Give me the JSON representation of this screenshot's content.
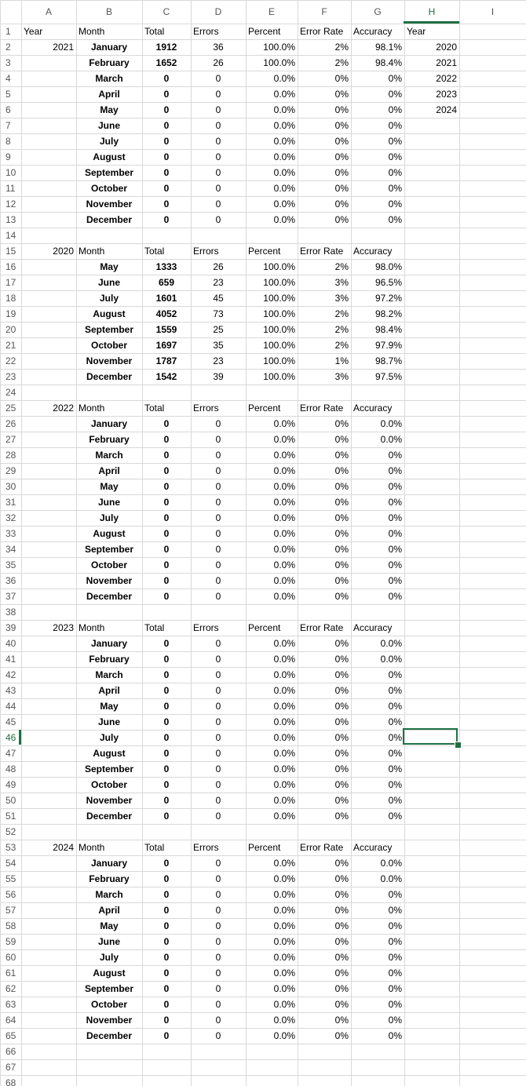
{
  "columns": [
    "A",
    "B",
    "C",
    "D",
    "E",
    "F",
    "G",
    "H",
    "I"
  ],
  "selected_column": "H",
  "selected_row": 46,
  "years_list_header": "Year",
  "years_list": [
    "2020",
    "2021",
    "2022",
    "2023",
    "2024"
  ],
  "blocks": [
    {
      "year": "2021",
      "headers": {
        "year": "Year",
        "month": "Month",
        "total": "Total",
        "errors": "Errors",
        "percent": "Percent",
        "error_rate": "Error Rate",
        "accuracy": "Accuracy"
      },
      "rows": [
        {
          "month": "January",
          "total": "1912",
          "errors": "36",
          "percent": "100.0%",
          "error_rate": "2%",
          "accuracy": "98.1%"
        },
        {
          "month": "February",
          "total": "1652",
          "errors": "26",
          "percent": "100.0%",
          "error_rate": "2%",
          "accuracy": "98.4%"
        },
        {
          "month": "March",
          "total": "0",
          "errors": "0",
          "percent": "0.0%",
          "error_rate": "0%",
          "accuracy": "0%"
        },
        {
          "month": "April",
          "total": "0",
          "errors": "0",
          "percent": "0.0%",
          "error_rate": "0%",
          "accuracy": "0%"
        },
        {
          "month": "May",
          "total": "0",
          "errors": "0",
          "percent": "0.0%",
          "error_rate": "0%",
          "accuracy": "0%"
        },
        {
          "month": "June",
          "total": "0",
          "errors": "0",
          "percent": "0.0%",
          "error_rate": "0%",
          "accuracy": "0%"
        },
        {
          "month": "July",
          "total": "0",
          "errors": "0",
          "percent": "0.0%",
          "error_rate": "0%",
          "accuracy": "0%"
        },
        {
          "month": "August",
          "total": "0",
          "errors": "0",
          "percent": "0.0%",
          "error_rate": "0%",
          "accuracy": "0%"
        },
        {
          "month": "September",
          "total": "0",
          "errors": "0",
          "percent": "0.0%",
          "error_rate": "0%",
          "accuracy": "0%"
        },
        {
          "month": "October",
          "total": "0",
          "errors": "0",
          "percent": "0.0%",
          "error_rate": "0%",
          "accuracy": "0%"
        },
        {
          "month": "November",
          "total": "0",
          "errors": "0",
          "percent": "0.0%",
          "error_rate": "0%",
          "accuracy": "0%"
        },
        {
          "month": "December",
          "total": "0",
          "errors": "0",
          "percent": "0.0%",
          "error_rate": "0%",
          "accuracy": "0%"
        }
      ]
    },
    {
      "year": "2020",
      "headers": {
        "year": "",
        "month": "Month",
        "total": "Total",
        "errors": "Errors",
        "percent": "Percent",
        "error_rate": "Error Rate",
        "accuracy": "Accuracy"
      },
      "rows": [
        {
          "month": "May",
          "total": "1333",
          "errors": "26",
          "percent": "100.0%",
          "error_rate": "2%",
          "accuracy": "98.0%"
        },
        {
          "month": "June",
          "total": "659",
          "errors": "23",
          "percent": "100.0%",
          "error_rate": "3%",
          "accuracy": "96.5%"
        },
        {
          "month": "July",
          "total": "1601",
          "errors": "45",
          "percent": "100.0%",
          "error_rate": "3%",
          "accuracy": "97.2%"
        },
        {
          "month": "August",
          "total": "4052",
          "errors": "73",
          "percent": "100.0%",
          "error_rate": "2%",
          "accuracy": "98.2%"
        },
        {
          "month": "September",
          "total": "1559",
          "errors": "25",
          "percent": "100.0%",
          "error_rate": "2%",
          "accuracy": "98.4%"
        },
        {
          "month": "October",
          "total": "1697",
          "errors": "35",
          "percent": "100.0%",
          "error_rate": "2%",
          "accuracy": "97.9%"
        },
        {
          "month": "November",
          "total": "1787",
          "errors": "23",
          "percent": "100.0%",
          "error_rate": "1%",
          "accuracy": "98.7%"
        },
        {
          "month": "December",
          "total": "1542",
          "errors": "39",
          "percent": "100.0%",
          "error_rate": "3%",
          "accuracy": "97.5%"
        }
      ]
    },
    {
      "year": "2022",
      "headers": {
        "year": "",
        "month": "Month",
        "total": "Total",
        "errors": "Errors",
        "percent": "Percent",
        "error_rate": "Error Rate",
        "accuracy": "Accuracy"
      },
      "rows": [
        {
          "month": "January",
          "total": "0",
          "errors": "0",
          "percent": "0.0%",
          "error_rate": "0%",
          "accuracy": "0.0%"
        },
        {
          "month": "February",
          "total": "0",
          "errors": "0",
          "percent": "0.0%",
          "error_rate": "0%",
          "accuracy": "0.0%"
        },
        {
          "month": "March",
          "total": "0",
          "errors": "0",
          "percent": "0.0%",
          "error_rate": "0%",
          "accuracy": "0%"
        },
        {
          "month": "April",
          "total": "0",
          "errors": "0",
          "percent": "0.0%",
          "error_rate": "0%",
          "accuracy": "0%"
        },
        {
          "month": "May",
          "total": "0",
          "errors": "0",
          "percent": "0.0%",
          "error_rate": "0%",
          "accuracy": "0%"
        },
        {
          "month": "June",
          "total": "0",
          "errors": "0",
          "percent": "0.0%",
          "error_rate": "0%",
          "accuracy": "0%"
        },
        {
          "month": "July",
          "total": "0",
          "errors": "0",
          "percent": "0.0%",
          "error_rate": "0%",
          "accuracy": "0%"
        },
        {
          "month": "August",
          "total": "0",
          "errors": "0",
          "percent": "0.0%",
          "error_rate": "0%",
          "accuracy": "0%"
        },
        {
          "month": "September",
          "total": "0",
          "errors": "0",
          "percent": "0.0%",
          "error_rate": "0%",
          "accuracy": "0%"
        },
        {
          "month": "October",
          "total": "0",
          "errors": "0",
          "percent": "0.0%",
          "error_rate": "0%",
          "accuracy": "0%"
        },
        {
          "month": "November",
          "total": "0",
          "errors": "0",
          "percent": "0.0%",
          "error_rate": "0%",
          "accuracy": "0%"
        },
        {
          "month": "December",
          "total": "0",
          "errors": "0",
          "percent": "0.0%",
          "error_rate": "0%",
          "accuracy": "0%"
        }
      ]
    },
    {
      "year": "2023",
      "headers": {
        "year": "",
        "month": "Month",
        "total": "Total",
        "errors": "Errors",
        "percent": "Percent",
        "error_rate": "Error Rate",
        "accuracy": "Accuracy"
      },
      "rows": [
        {
          "month": "January",
          "total": "0",
          "errors": "0",
          "percent": "0.0%",
          "error_rate": "0%",
          "accuracy": "0.0%"
        },
        {
          "month": "February",
          "total": "0",
          "errors": "0",
          "percent": "0.0%",
          "error_rate": "0%",
          "accuracy": "0.0%"
        },
        {
          "month": "March",
          "total": "0",
          "errors": "0",
          "percent": "0.0%",
          "error_rate": "0%",
          "accuracy": "0%"
        },
        {
          "month": "April",
          "total": "0",
          "errors": "0",
          "percent": "0.0%",
          "error_rate": "0%",
          "accuracy": "0%"
        },
        {
          "month": "May",
          "total": "0",
          "errors": "0",
          "percent": "0.0%",
          "error_rate": "0%",
          "accuracy": "0%"
        },
        {
          "month": "June",
          "total": "0",
          "errors": "0",
          "percent": "0.0%",
          "error_rate": "0%",
          "accuracy": "0%"
        },
        {
          "month": "July",
          "total": "0",
          "errors": "0",
          "percent": "0.0%",
          "error_rate": "0%",
          "accuracy": "0%"
        },
        {
          "month": "August",
          "total": "0",
          "errors": "0",
          "percent": "0.0%",
          "error_rate": "0%",
          "accuracy": "0%"
        },
        {
          "month": "September",
          "total": "0",
          "errors": "0",
          "percent": "0.0%",
          "error_rate": "0%",
          "accuracy": "0%"
        },
        {
          "month": "October",
          "total": "0",
          "errors": "0",
          "percent": "0.0%",
          "error_rate": "0%",
          "accuracy": "0%"
        },
        {
          "month": "November",
          "total": "0",
          "errors": "0",
          "percent": "0.0%",
          "error_rate": "0%",
          "accuracy": "0%"
        },
        {
          "month": "December",
          "total": "0",
          "errors": "0",
          "percent": "0.0%",
          "error_rate": "0%",
          "accuracy": "0%"
        }
      ]
    },
    {
      "year": "2024",
      "headers": {
        "year": "",
        "month": "Month",
        "total": "Total",
        "errors": "Errors",
        "percent": "Percent",
        "error_rate": "Error Rate",
        "accuracy": "Accuracy"
      },
      "rows": [
        {
          "month": "January",
          "total": "0",
          "errors": "0",
          "percent": "0.0%",
          "error_rate": "0%",
          "accuracy": "0.0%"
        },
        {
          "month": "February",
          "total": "0",
          "errors": "0",
          "percent": "0.0%",
          "error_rate": "0%",
          "accuracy": "0.0%"
        },
        {
          "month": "March",
          "total": "0",
          "errors": "0",
          "percent": "0.0%",
          "error_rate": "0%",
          "accuracy": "0%"
        },
        {
          "month": "April",
          "total": "0",
          "errors": "0",
          "percent": "0.0%",
          "error_rate": "0%",
          "accuracy": "0%"
        },
        {
          "month": "May",
          "total": "0",
          "errors": "0",
          "percent": "0.0%",
          "error_rate": "0%",
          "accuracy": "0%"
        },
        {
          "month": "June",
          "total": "0",
          "errors": "0",
          "percent": "0.0%",
          "error_rate": "0%",
          "accuracy": "0%"
        },
        {
          "month": "July",
          "total": "0",
          "errors": "0",
          "percent": "0.0%",
          "error_rate": "0%",
          "accuracy": "0%"
        },
        {
          "month": "August",
          "total": "0",
          "errors": "0",
          "percent": "0.0%",
          "error_rate": "0%",
          "accuracy": "0%"
        },
        {
          "month": "September",
          "total": "0",
          "errors": "0",
          "percent": "0.0%",
          "error_rate": "0%",
          "accuracy": "0%"
        },
        {
          "month": "October",
          "total": "0",
          "errors": "0",
          "percent": "0.0%",
          "error_rate": "0%",
          "accuracy": "0%"
        },
        {
          "month": "November",
          "total": "0",
          "errors": "0",
          "percent": "0.0%",
          "error_rate": "0%",
          "accuracy": "0%"
        },
        {
          "month": "December",
          "total": "0",
          "errors": "0",
          "percent": "0.0%",
          "error_rate": "0%",
          "accuracy": "0%"
        }
      ]
    }
  ],
  "colors": {
    "accent": "#1f7044",
    "gridline": "#d9d9d9",
    "header_text": "#555555"
  }
}
